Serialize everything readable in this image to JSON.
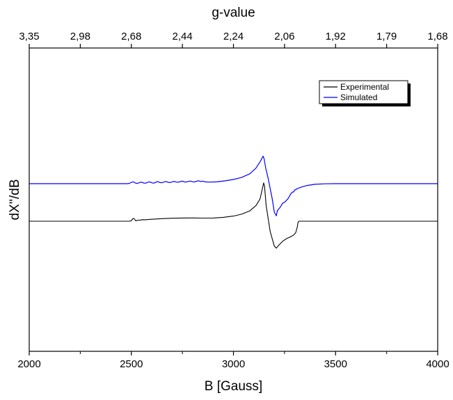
{
  "chart_data": {
    "type": "line",
    "xlabel": "B [Gauss]",
    "ylabel": "dX''/dB",
    "x2label": "g-value",
    "xlim": [
      2000,
      4000
    ],
    "xticks": [
      "2000",
      "2500",
      "3000",
      "3500",
      "4000"
    ],
    "x2ticks": [
      "3,35",
      "2,98",
      "2,68",
      "2,44",
      "2,24",
      "2,06",
      "1,92",
      "1,79",
      "1,68"
    ],
    "y_tick_labels_shown": false,
    "grid": false,
    "legend": {
      "placement": "top-right"
    },
    "series": [
      {
        "name": "Experimental",
        "color": "#000000",
        "x": [
          2000,
          2490,
          2500,
          2508,
          2514,
          2522,
          2530,
          2542,
          2555,
          2570,
          2585,
          2600,
          2650,
          2700,
          2750,
          2800,
          2850,
          2900,
          2950,
          3000,
          3040,
          3080,
          3110,
          3130,
          3140,
          3148,
          3152,
          3160,
          3180,
          3200,
          3210,
          3220,
          3240,
          3260,
          3280,
          3295,
          3305,
          3312,
          3316,
          3320,
          3330,
          4000
        ],
        "y": [
          0,
          0,
          0.1,
          0.55,
          0.45,
          0.05,
          0.2,
          0.22,
          0.3,
          0.28,
          0.35,
          0.38,
          0.5,
          0.58,
          0.62,
          0.63,
          0.6,
          0.62,
          0.75,
          1.0,
          1.35,
          2.0,
          3.0,
          4.3,
          6.0,
          7.4,
          6.8,
          3.0,
          -2.0,
          -4.8,
          -5.2,
          -4.7,
          -3.9,
          -3.35,
          -3.0,
          -2.65,
          -2.2,
          -1.2,
          -0.3,
          0,
          0,
          0
        ]
      },
      {
        "name": "Simulated",
        "color": "#0000ff",
        "x": [
          2000,
          2480,
          2490,
          2500,
          2510,
          2520,
          2530,
          2540,
          2550,
          2560,
          2570,
          2580,
          2590,
          2600,
          2610,
          2620,
          2630,
          2640,
          2650,
          2660,
          2670,
          2680,
          2690,
          2700,
          2710,
          2720,
          2730,
          2740,
          2750,
          2760,
          2770,
          2780,
          2790,
          2800,
          2810,
          2820,
          2830,
          2840,
          2850,
          2860,
          2880,
          2920,
          2960,
          3000,
          3040,
          3080,
          3110,
          3130,
          3145,
          3150,
          3158,
          3170,
          3190,
          3200,
          3210,
          3215,
          3230,
          3240,
          3250,
          3260,
          3265,
          3275,
          3280,
          3290,
          3295,
          3300,
          3305,
          3310,
          3330,
          3360,
          3400,
          3450,
          3500,
          4000
        ],
        "y": [
          0,
          0,
          0.05,
          0.25,
          0.35,
          0.12,
          0.05,
          0.2,
          0.3,
          0.12,
          0.1,
          0.25,
          0.35,
          0.18,
          0.1,
          0.28,
          0.4,
          0.22,
          0.18,
          0.32,
          0.42,
          0.26,
          0.22,
          0.35,
          0.44,
          0.3,
          0.28,
          0.4,
          0.48,
          0.34,
          0.32,
          0.44,
          0.5,
          0.36,
          0.34,
          0.48,
          0.55,
          0.4,
          0.5,
          0.35,
          0.3,
          0.35,
          0.55,
          0.8,
          1.2,
          1.9,
          3.0,
          4.2,
          5.3,
          4.8,
          3.0,
          1.0,
          -3.0,
          -5.5,
          -6.2,
          -5.2,
          -4.5,
          -3.8,
          -3.6,
          -3.2,
          -3.0,
          -2.4,
          -2.0,
          -1.6,
          -1.6,
          -1.2,
          -1.2,
          -1.0,
          -0.7,
          -0.35,
          -0.12,
          -0.03,
          0,
          0
        ]
      }
    ]
  }
}
